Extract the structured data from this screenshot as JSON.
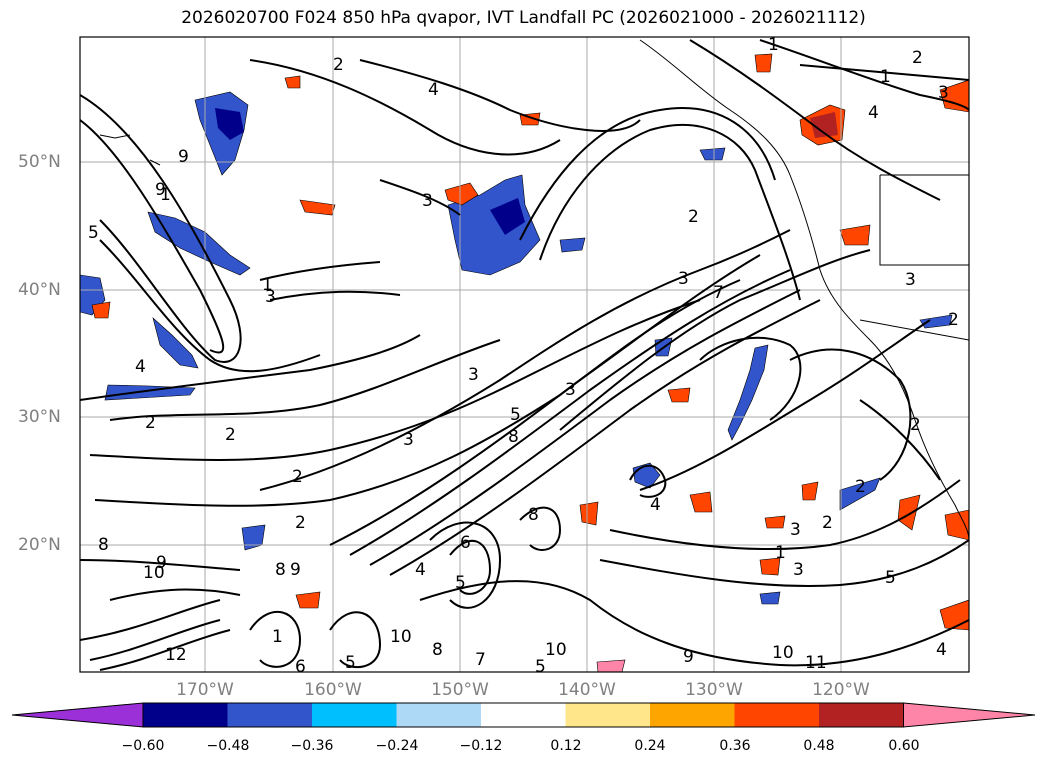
{
  "title": "2026020700 F024 850 hPa qvapor, IVT Landfall PC (2026021000 - 2026021112)",
  "axes": {
    "lat_labels": [
      "50°N",
      "40°N",
      "30°N",
      "20°N"
    ],
    "lon_labels": [
      "170°W",
      "160°W",
      "150°W",
      "140°W",
      "130°W",
      "120°W"
    ]
  },
  "colorbar": {
    "ticks": [
      "−0.60",
      "−0.48",
      "−0.36",
      "−0.24",
      "−0.12",
      "0.12",
      "0.24",
      "0.36",
      "0.48",
      "0.60"
    ],
    "colors": [
      "#9b30d9",
      "#00008b",
      "#3355cc",
      "#00bfff",
      "#add8f6",
      "#ffffff",
      "#ffe68a",
      "#ffa500",
      "#ff4500",
      "#b22222",
      "#ff85a8"
    ]
  },
  "contour_labels": [
    "2",
    "4",
    "1",
    "3",
    "1",
    "2",
    "4",
    "3",
    "9",
    "9",
    "3",
    "2",
    "3",
    "1",
    "2",
    "5",
    "1",
    "3",
    "4",
    "3",
    "2",
    "2",
    "7",
    "3",
    "8",
    "2",
    "5",
    "4",
    "2",
    "3",
    "2",
    "1",
    "2",
    "8",
    "9",
    "10",
    "9",
    "8",
    "12",
    "1",
    "5",
    "6",
    "10",
    "8",
    "7",
    "5",
    "10",
    "9",
    "10",
    "11",
    "3",
    "5",
    "5",
    "4",
    "6",
    "8",
    "3",
    "2",
    "4"
  ],
  "map_colors": {
    "contour": "#000000",
    "grid": "#aaaaaa",
    "coast": "#000000"
  }
}
